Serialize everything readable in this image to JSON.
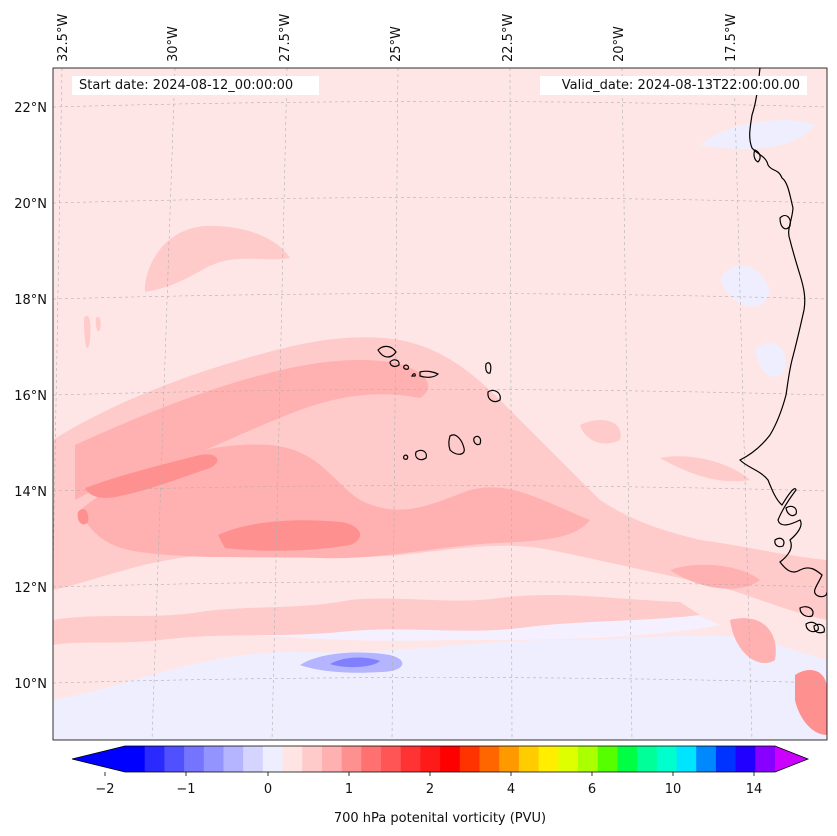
{
  "map": {
    "start_date_text": "Start date: 2024-08-12_00:00:00",
    "valid_date_text": "Valid_date: 2024-08-13T22:00:00.00",
    "longitude_labels": [
      "32.5°W",
      "30°W",
      "27.5°W",
      "25°W",
      "22.5°W",
      "20°W",
      "17.5°W"
    ],
    "latitude_labels": [
      "22°N",
      "20°N",
      "18°N",
      "16°N",
      "14°N",
      "12°N",
      "10°N"
    ],
    "colors": {
      "background_field": "#ffe6e6",
      "coastline": "#000000",
      "gridline": "#b0b0b0"
    }
  },
  "colorbar": {
    "label": "700 hPa potenital vorticity (PVU)",
    "tick_labels": [
      "−2",
      "−1",
      "0",
      "1",
      "2",
      "4",
      "6",
      "10",
      "14"
    ],
    "colors": [
      "#0000ff",
      "#2a2aff",
      "#5050ff",
      "#7474ff",
      "#9494ff",
      "#b4b4ff",
      "#d4d4ff",
      "#eeeeff",
      "#ffe4e4",
      "#ffcaca",
      "#ffb0b0",
      "#ff9090",
      "#ff7070",
      "#ff5555",
      "#ff3333",
      "#ff1a1a",
      "#ff0000",
      "#ff3300",
      "#ff6600",
      "#ff9900",
      "#ffcc00",
      "#ffee00",
      "#ddff00",
      "#aaff00",
      "#55ff00",
      "#00ff44",
      "#00ff99",
      "#00ffcc",
      "#00e5ff",
      "#0088ff",
      "#0033ff",
      "#2200ff",
      "#8800ff"
    ],
    "extend_colors": {
      "min": "#0000ff",
      "max": "#cc00ff"
    }
  }
}
